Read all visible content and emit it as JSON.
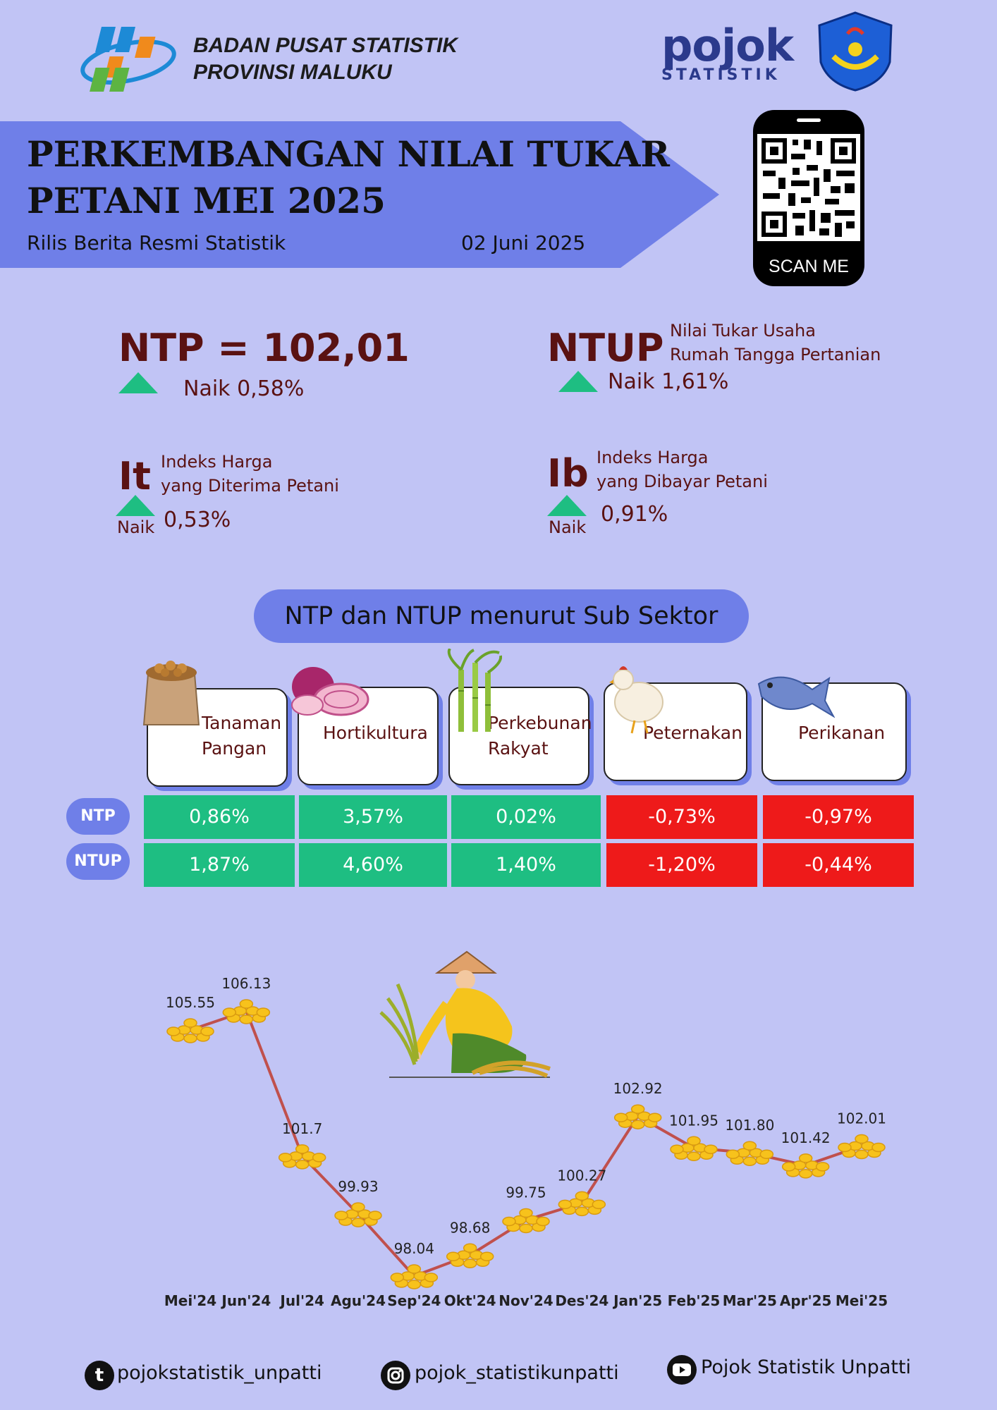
{
  "header": {
    "org_line1": "BADAN PUSAT STATISTIK",
    "org_line2": "PROVINSI MALUKU",
    "pojok_brand": "pojok",
    "pojok_sub": "STATISTIK",
    "title_line1": "PERKEMBANGAN NILAI TUKAR",
    "title_line2": "PETANI MEI 2025",
    "subtitle": "Rilis Berita Resmi Statistik",
    "date": "02 Juni 2025",
    "scan_label": "SCAN ME"
  },
  "indicators": {
    "ntp": {
      "label": "NTP = 102,01",
      "change": "Naik 0,58%"
    },
    "ntup": {
      "label": "NTUP",
      "desc_line1": "Nilai Tukar  Usaha",
      "desc_line2": "Rumah Tangga Pertanian",
      "change": "Naik 1,61%"
    },
    "it": {
      "label": "It",
      "desc_line1": "Indeks Harga",
      "desc_line2": "yang Diterima Petani",
      "naik": "Naik",
      "change": "0,53%"
    },
    "ib": {
      "label": "Ib",
      "desc_line1": "Indeks Harga",
      "desc_line2": "yang Dibayar Petani",
      "naik": "Naik",
      "change": "0,91%"
    }
  },
  "subsector": {
    "title": "NTP dan NTUP menurut Sub Sektor",
    "row_ntp": "NTP",
    "row_ntup": "NTUP",
    "sectors": [
      {
        "line1": "Tanaman",
        "line2": "Pangan",
        "ntp": "0,86%",
        "ntup": "1,87%",
        "ntp_sign": "pos",
        "ntup_sign": "pos"
      },
      {
        "line1": "Hortikultura",
        "line2": "",
        "ntp": "3,57%",
        "ntup": "4,60%",
        "ntp_sign": "pos",
        "ntup_sign": "pos"
      },
      {
        "line1": "Perkebunan",
        "line2": "Rakyat",
        "ntp": "0,02%",
        "ntup": "1,40%",
        "ntp_sign": "pos",
        "ntup_sign": "pos"
      },
      {
        "line1": "Peternakan",
        "line2": "",
        "ntp": "-0,73%",
        "ntup": "-1,20%",
        "ntp_sign": "neg",
        "ntup_sign": "neg"
      },
      {
        "line1": "Perikanan",
        "line2": "",
        "ntp": "-0,97%",
        "ntup": "-0,44%",
        "ntp_sign": "neg",
        "ntup_sign": "neg"
      }
    ]
  },
  "chart_data": {
    "type": "line",
    "categories": [
      "Mei'24",
      "Jun'24",
      "Jul'24",
      "Agu'24",
      "Sep'24",
      "Okt'24",
      "Nov'24",
      "Des'24",
      "Jan'25",
      "Feb'25",
      "Mar'25",
      "Apr'25",
      "Mei'25"
    ],
    "values": [
      105.55,
      106.13,
      101.7,
      99.93,
      98.04,
      98.68,
      99.75,
      100.27,
      102.92,
      101.95,
      101.8,
      101.42,
      102.01
    ],
    "value_labels": [
      "105.55",
      "106.13",
      "101.7",
      "99.93",
      "98.04",
      "98.68",
      "99.75",
      "100.27",
      "102.92",
      "101.95",
      "101.80",
      "101.42",
      "102.01"
    ],
    "title": "",
    "xlabel": "",
    "ylabel": "",
    "line_color": "#c0504d",
    "marker": "coin-pile"
  },
  "footer": {
    "tumblr": "pojokstatistik_unpatti",
    "instagram": "pojok_statistikunpatti",
    "youtube": "Pojok Statistik Unpatti"
  },
  "colors": {
    "background": "#c1c4f5",
    "accent": "#6f7fe8",
    "positive": "#1ebe82",
    "negative": "#ee1a1a",
    "text_dark_red": "#5a1212"
  }
}
